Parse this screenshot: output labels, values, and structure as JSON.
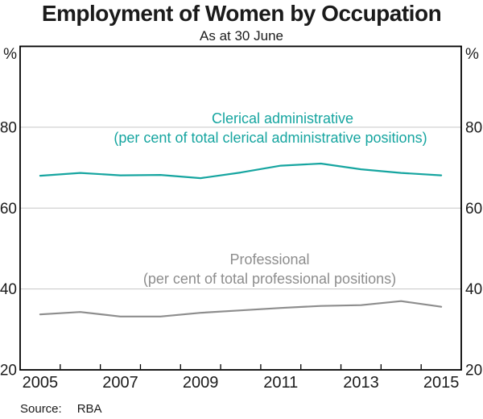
{
  "chart_data": {
    "type": "line",
    "title": "Employment of Women by Occupation",
    "subtitle": "As at 30 June",
    "unit_left": "%",
    "unit_right": "%",
    "x": [
      2005,
      2006,
      2007,
      2008,
      2009,
      2010,
      2011,
      2012,
      2013,
      2014,
      2015
    ],
    "xtick_labels": [
      "2005",
      "2007",
      "2009",
      "2011",
      "2013",
      "2015"
    ],
    "ylim": [
      20,
      100
    ],
    "yticks": [
      20,
      40,
      60,
      80
    ],
    "grid": "horizontal",
    "legend_position": "inline-annotations",
    "axis_label_color": "#1b1b1b",
    "gridline_color": "#c6c6c6",
    "frame_color": "#000000",
    "series": [
      {
        "name": "Clerical administrative",
        "label": "Clerical administrative",
        "sublabel": "(per cent of total clerical administrative positions)",
        "color": "#16a5a0",
        "values": [
          68.0,
          68.7,
          68.1,
          68.2,
          67.4,
          68.8,
          70.5,
          71.0,
          69.6,
          68.7,
          68.1
        ]
      },
      {
        "name": "Professional",
        "label": "Professional",
        "sublabel": "(per cent of total professional positions)",
        "color": "#8d8d8d",
        "values": [
          33.7,
          34.3,
          33.2,
          33.2,
          34.1,
          34.7,
          35.3,
          35.8,
          36.0,
          37.0,
          35.6
        ]
      }
    ],
    "source": {
      "label": "Source:",
      "value": "RBA"
    }
  }
}
